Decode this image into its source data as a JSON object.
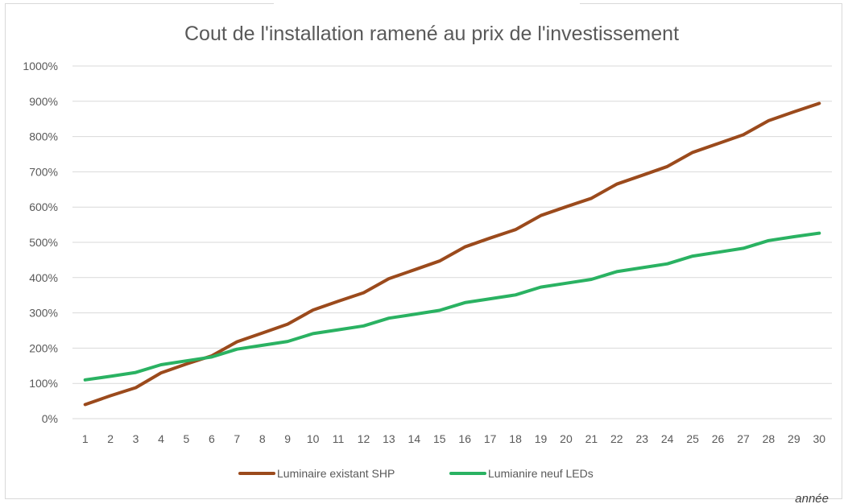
{
  "chart_data": {
    "type": "line",
    "title": "Cout de l'installation ramené au prix de l'investissement",
    "xlabel": "année",
    "ylabel": "",
    "x": [
      1,
      2,
      3,
      4,
      5,
      6,
      7,
      8,
      9,
      10,
      11,
      12,
      13,
      14,
      15,
      16,
      17,
      18,
      19,
      20,
      21,
      22,
      23,
      24,
      25,
      26,
      27,
      28,
      29,
      30
    ],
    "ylim": [
      0,
      1000
    ],
    "yticks": [
      0,
      100,
      200,
      300,
      400,
      500,
      600,
      700,
      800,
      900,
      1000
    ],
    "ytick_labels": [
      "0%",
      "100%",
      "200%",
      "300%",
      "400%",
      "500%",
      "600%",
      "700%",
      "800%",
      "900%",
      "1000%"
    ],
    "grid": true,
    "legend_position": "bottom",
    "series": [
      {
        "name": "Luminaire existant SHP",
        "color": "#9b4a1c",
        "values": [
          40,
          65,
          88,
          130,
          155,
          178,
          218,
          243,
          268,
          308,
          333,
          357,
          397,
          422,
          447,
          487,
          512,
          536,
          576,
          601,
          625,
          665,
          690,
          715,
          755,
          780,
          805,
          845,
          870,
          894
        ]
      },
      {
        "name": "Lumianire neuf LEDs",
        "color": "#2ab262",
        "values": [
          110,
          120,
          131,
          153,
          164,
          175,
          197,
          208,
          219,
          241,
          252,
          263,
          285,
          296,
          307,
          329,
          340,
          351,
          373,
          384,
          395,
          417,
          428,
          439,
          461,
          472,
          483,
          505,
          516,
          526
        ]
      }
    ]
  }
}
